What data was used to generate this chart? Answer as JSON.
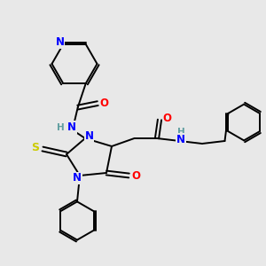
{
  "bg_color": "#e8e8e8",
  "bond_color": "#000000",
  "N_color": "#0000ff",
  "O_color": "#ff0000",
  "S_color": "#cccc00",
  "H_color": "#5f9ea0",
  "font_size": 8.0,
  "lw": 1.4,
  "xlim": [
    0,
    10
  ],
  "ylim": [
    0,
    10
  ]
}
